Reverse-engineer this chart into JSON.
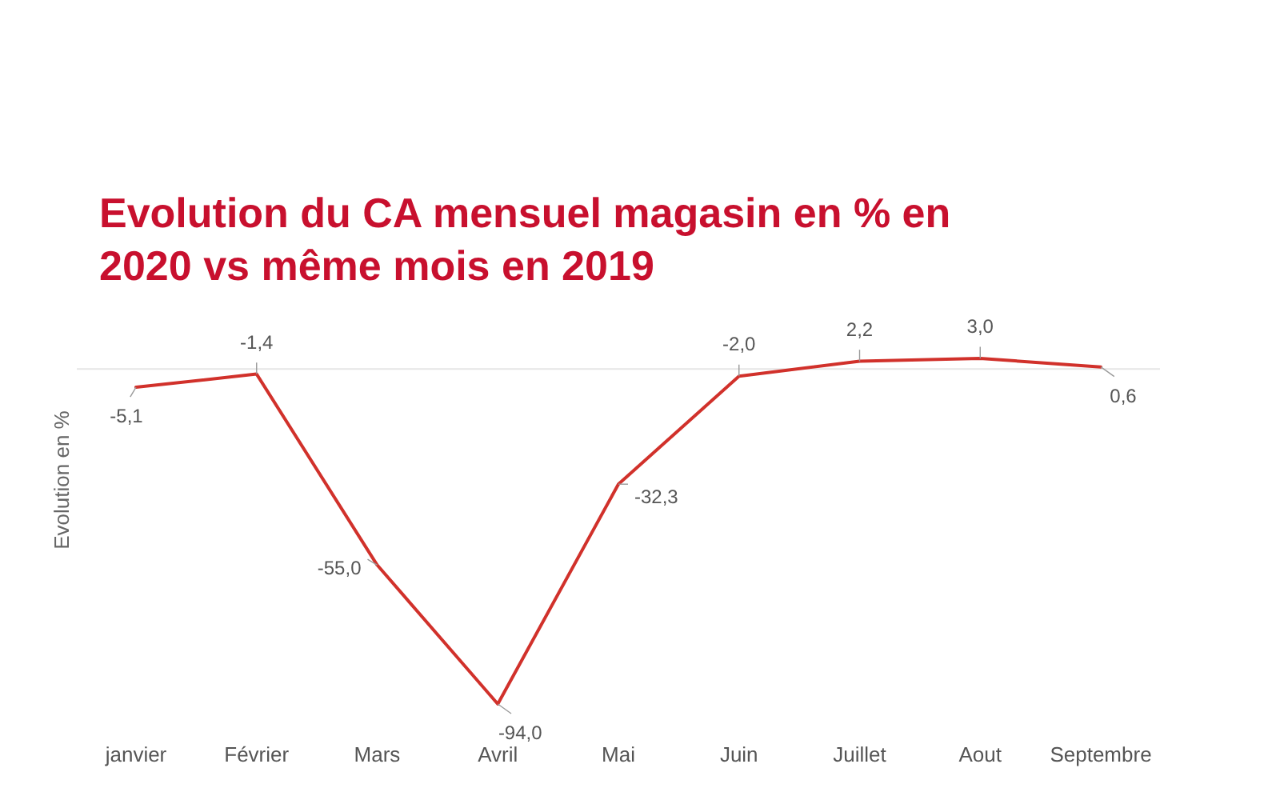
{
  "chart_data": {
    "type": "line",
    "title": "Evolution du CA mensuel magasin en % en 2020 vs même mois en 2019",
    "ylabel": "Evolution en %",
    "categories": [
      "janvier",
      "Février",
      "Mars",
      "Avril",
      "Mai",
      "Juin",
      "Juillet",
      "Aout",
      "Septembre"
    ],
    "series": [
      {
        "color": "#d1312b",
        "values": [
          -5.1,
          -1.4,
          -55.0,
          -94.0,
          -32.3,
          -2.0,
          2.2,
          3.0,
          0.6
        ],
        "value_labels": [
          "-5,1",
          "-1,4",
          "-55,0",
          "-94,0",
          "-32,3",
          "-2,0",
          "2,2",
          "3,0",
          "0,6"
        ]
      }
    ],
    "data_labels": true,
    "ref_lines": [
      {
        "axis": "y",
        "value": 0,
        "color": "#e6e6e6"
      }
    ],
    "marker": "none",
    "line_style": "solid"
  }
}
